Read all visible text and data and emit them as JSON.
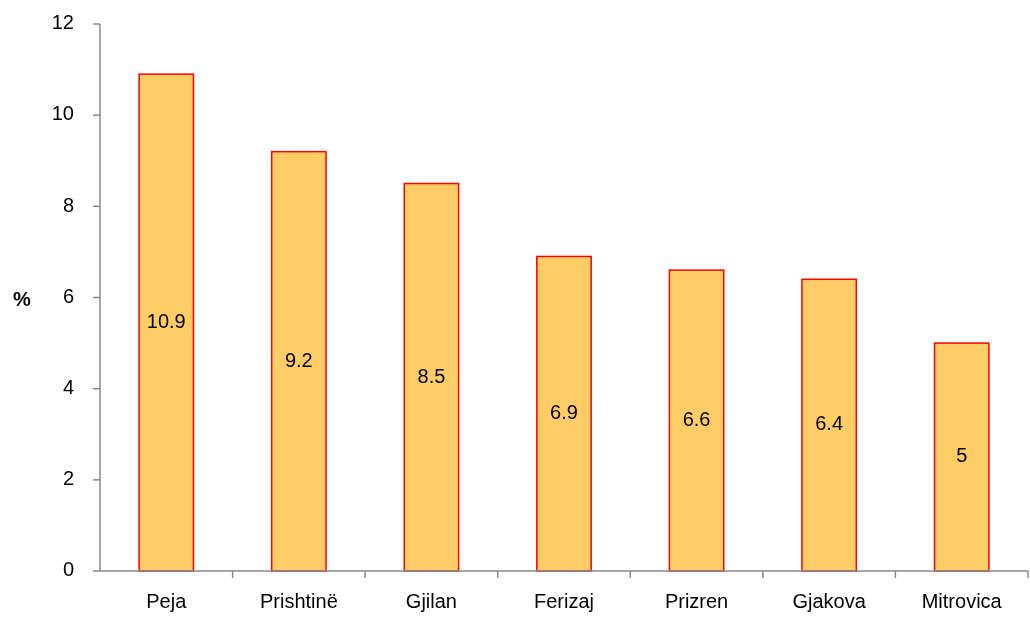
{
  "chart_data": {
    "type": "bar",
    "ylabel": "%",
    "categories": [
      "Peja",
      "Prishtinë",
      "Gjilan",
      "Ferizaj",
      "Prizren",
      "Gjakova",
      "Mitrovica"
    ],
    "series": [
      {
        "color": "#ffcc66",
        "values": [
          10.9,
          9.2,
          8.5,
          6.9,
          6.6,
          6.4,
          5
        ]
      }
    ],
    "ylim": [
      0,
      12
    ],
    "yticks": [
      0,
      2,
      4,
      6,
      8,
      10,
      12
    ],
    "data_labels": true,
    "grid": false
  }
}
